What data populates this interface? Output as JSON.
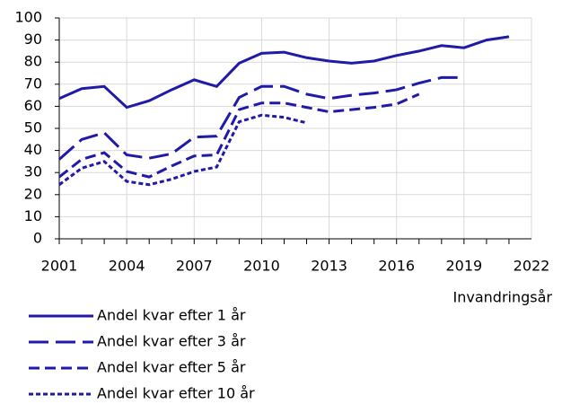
{
  "chart_data": {
    "type": "line",
    "x_label": "Invandringsår",
    "x": [
      2001,
      2002,
      2003,
      2004,
      2005,
      2006,
      2007,
      2008,
      2009,
      2010,
      2011,
      2012,
      2013,
      2014,
      2015,
      2016,
      2017,
      2018,
      2019,
      2020,
      2021
    ],
    "series": [
      {
        "name": "Andel kvar efter 1 år",
        "color": "#1f1aa8",
        "style": "solid",
        "values": [
          63.5,
          68,
          69,
          59.5,
          62.5,
          67.5,
          72,
          69,
          79.5,
          84,
          84.5,
          82,
          80.5,
          79.5,
          80.5,
          83,
          85,
          87.5,
          86.5,
          90,
          91.5
        ]
      },
      {
        "name": "Andel kvar efter 3 år",
        "color": "#1f1aa8",
        "style": "long-dash",
        "values": [
          36,
          45,
          48,
          38,
          36.5,
          38.5,
          46,
          46.5,
          64,
          69,
          69,
          65.5,
          63.5,
          65,
          66,
          67.5,
          70.5,
          73,
          73,
          null,
          null
        ]
      },
      {
        "name": "Andel kvar efter 5 år",
        "color": "#1f1aa8",
        "style": "dash",
        "values": [
          28,
          36,
          39,
          30.5,
          28,
          33,
          37.5,
          38,
          58.5,
          61.5,
          61.5,
          59.5,
          57.5,
          58.5,
          59.5,
          61,
          65.5,
          null,
          null,
          null,
          null
        ]
      },
      {
        "name": "Andel kvar efter 10 år",
        "color": "#1f1aa8",
        "style": "short-dash",
        "values": [
          24.5,
          32,
          35,
          26,
          24.5,
          27,
          30.5,
          32.5,
          53,
          56,
          55,
          52.5,
          null,
          null,
          null,
          null,
          null,
          null,
          null,
          null,
          null
        ]
      }
    ],
    "xlim": [
      2001,
      2022
    ],
    "xticks": [
      2001,
      2004,
      2007,
      2010,
      2013,
      2016,
      2019,
      2022
    ],
    "ylim": [
      0,
      100
    ],
    "yticks": [
      0,
      10,
      20,
      30,
      40,
      50,
      60,
      70,
      80,
      90,
      100
    ],
    "grid": true
  }
}
